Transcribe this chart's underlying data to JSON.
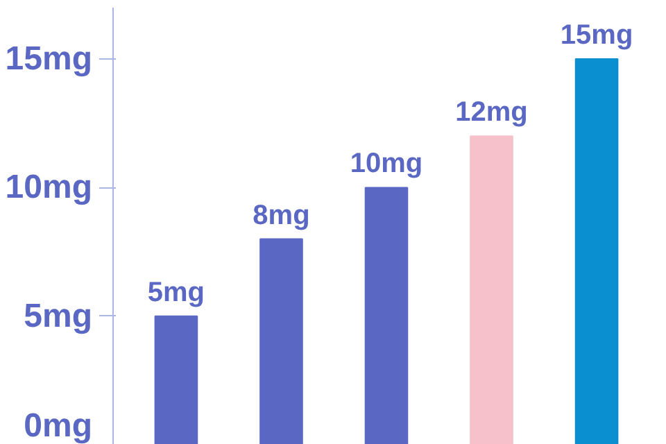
{
  "chart_data": {
    "type": "bar",
    "categories": [
      null,
      null,
      null,
      null,
      null
    ],
    "values": [
      5,
      8,
      10,
      12,
      15
    ],
    "colors": [
      "#5b68c3",
      "#5b68c3",
      "#5b68c3",
      "#f7c1cc",
      "#0a8fd0"
    ],
    "value_labels": [
      "5mg",
      "8mg",
      "10mg",
      "12mg",
      "15mg"
    ],
    "ylim": [
      0,
      17
    ],
    "yticks": [
      {
        "value": 0,
        "label": "0mg"
      },
      {
        "value": 5,
        "label": "5mg"
      },
      {
        "value": 10,
        "label": "10mg"
      },
      {
        "value": 15,
        "label": "15mg"
      }
    ],
    "grid": false,
    "tick_labels": "y"
  }
}
